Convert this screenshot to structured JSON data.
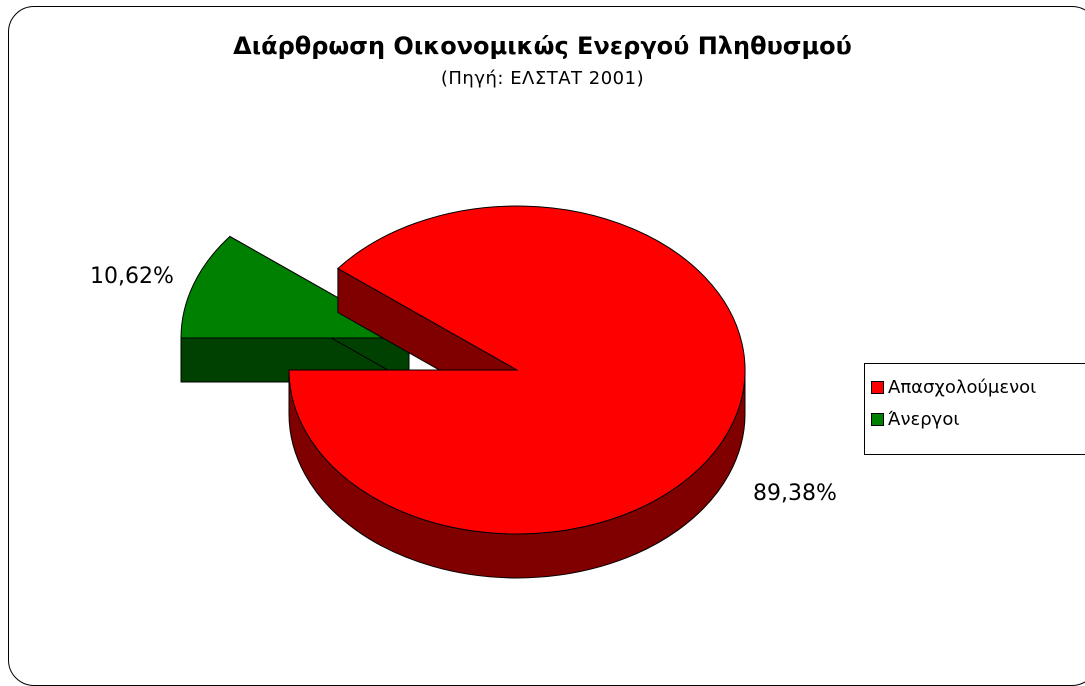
{
  "chart_data": {
    "type": "pie",
    "title": "Διάρθρωση Οικονομικώς Ενεργού Πληθυσμού",
    "subtitle": "(Πηγή: ΕΛΣΤΑΤ 2001)",
    "categories": [
      "Απασχολούμενοι",
      "Άνεργοι"
    ],
    "values": [
      89.38,
      10.62
    ],
    "data_labels": [
      "89,38%",
      "10,62%"
    ],
    "colors": [
      "#FF0000",
      "#008000"
    ],
    "side_colors": [
      "#800000",
      "#004000"
    ],
    "exploded": "Άνεργοι",
    "style": "3d-pie",
    "legend": "right"
  }
}
